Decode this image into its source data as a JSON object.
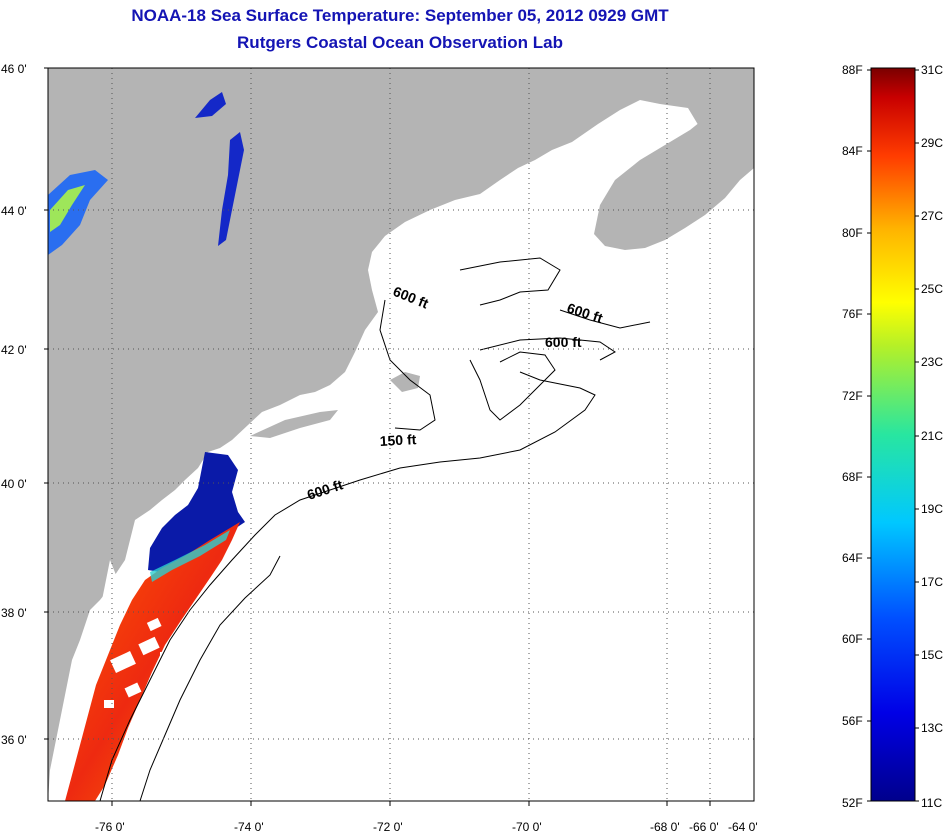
{
  "title": "NOAA-18 Sea Surface Temperature:  September 05, 2012 0929 GMT",
  "subtitle": "Rutgers Coastal Ocean Observation Lab",
  "map": {
    "lat_labels": [
      "46 0'",
      "44 0'",
      "42 0'",
      "40 0'",
      "38 0'",
      "36 0'"
    ],
    "lon_labels": [
      "-76 0'",
      "-74 0'",
      "-72 0'",
      "-70 0'",
      "-68 0'",
      "-66 0'",
      "-64 0'"
    ],
    "contour_labels": [
      "600 ft",
      "600 ft",
      "600 ft",
      "150 ft",
      "600 ft"
    ],
    "colors": {
      "land": "#b4b4b4",
      "ocean": "#ffffff",
      "grid": "#555555"
    }
  },
  "colorbar": {
    "fahrenheit_labels": [
      "88F",
      "84F",
      "80F",
      "76F",
      "72F",
      "68F",
      "64F",
      "60F",
      "56F",
      "52F"
    ],
    "celsius_labels": [
      "31C",
      "29C",
      "27C",
      "25C",
      "23C",
      "21C",
      "19C",
      "17C",
      "15C",
      "13C",
      "11C"
    ]
  }
}
